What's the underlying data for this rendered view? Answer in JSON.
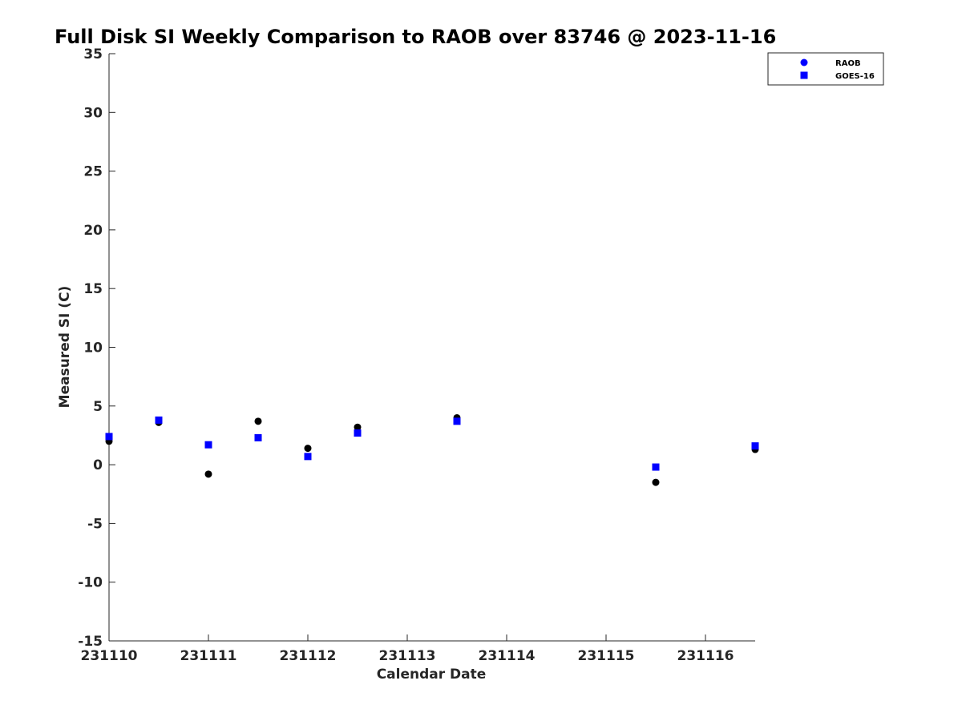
{
  "chart_data": {
    "type": "scatter",
    "title": "Full Disk SI Weekly Comparison to RAOB over 83746 @ 2023-11-16",
    "xlabel": "Calendar Date",
    "ylabel": "Measured SI (C)",
    "x_ticks": [
      {
        "value": 0,
        "label": "231110"
      },
      {
        "value": 1,
        "label": "231111"
      },
      {
        "value": 2,
        "label": "231112"
      },
      {
        "value": 3,
        "label": "231113"
      },
      {
        "value": 4,
        "label": "231114"
      },
      {
        "value": 5,
        "label": "231115"
      },
      {
        "value": 6,
        "label": "231116"
      }
    ],
    "xlim": [
      0,
      6.5
    ],
    "ylim": [
      -15,
      35
    ],
    "y_ticks": [
      35,
      30,
      25,
      20,
      15,
      10,
      5,
      0,
      -5,
      -10,
      -15
    ],
    "grid": false,
    "legend_placement": "top-right",
    "series": [
      {
        "name": "RAOB",
        "marker": "circle",
        "color": "#000000",
        "legend_color": "#0000ff",
        "points": [
          {
            "x": 0.0,
            "y": 2.0
          },
          {
            "x": 0.5,
            "y": 3.6
          },
          {
            "x": 1.0,
            "y": -0.8
          },
          {
            "x": 1.5,
            "y": 3.7
          },
          {
            "x": 2.0,
            "y": 1.4
          },
          {
            "x": 2.5,
            "y": 3.2
          },
          {
            "x": 3.5,
            "y": 4.0
          },
          {
            "x": 5.5,
            "y": -1.5
          },
          {
            "x": 6.5,
            "y": 1.3
          }
        ]
      },
      {
        "name": "GOES-16",
        "marker": "square",
        "color": "#0000ff",
        "legend_color": "#0000ff",
        "points": [
          {
            "x": 0.0,
            "y": 2.4
          },
          {
            "x": 0.5,
            "y": 3.8
          },
          {
            "x": 1.0,
            "y": 1.7
          },
          {
            "x": 1.5,
            "y": 2.3
          },
          {
            "x": 2.0,
            "y": 0.7
          },
          {
            "x": 2.5,
            "y": 2.7
          },
          {
            "x": 3.5,
            "y": 3.7
          },
          {
            "x": 5.5,
            "y": -0.2
          },
          {
            "x": 6.5,
            "y": 1.6
          }
        ]
      }
    ]
  }
}
